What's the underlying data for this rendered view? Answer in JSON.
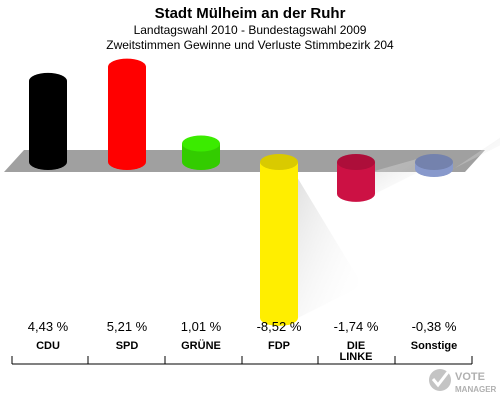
{
  "chart_data": {
    "type": "bar",
    "title": "Stadt Mülheim an der Ruhr",
    "subtitle_lines": [
      "Landtagswahl 2010 - Bundestagswahl 2009",
      "Zweitstimmen Gewinne und Verluste Stimmbezirk 204"
    ],
    "categories": [
      "CDU",
      "SPD",
      "GRÜNE",
      "FDP",
      "DIE LINKE",
      "Sonstige"
    ],
    "category_lines": [
      [
        "CDU"
      ],
      [
        "SPD"
      ],
      [
        "GRÜNE"
      ],
      [
        "FDP"
      ],
      [
        "DIE",
        "LINKE"
      ],
      [
        "Sonstige"
      ]
    ],
    "values": [
      4.43,
      5.21,
      1.01,
      -8.52,
      -1.74,
      -0.38
    ],
    "value_labels": [
      "4,43 %",
      "5,21 %",
      "1,01 %",
      "-8,52 %",
      "-1,74 %",
      "-0,38 %"
    ],
    "colors": [
      "#000000",
      "#ff0000",
      "#33cc00",
      "#ffee00",
      "#cc1144",
      "#8899cc"
    ],
    "ylim": [
      -9,
      6
    ],
    "grid": false,
    "legend": "none"
  },
  "logo": {
    "line1": "VOTE",
    "line2": "MANAGER"
  }
}
